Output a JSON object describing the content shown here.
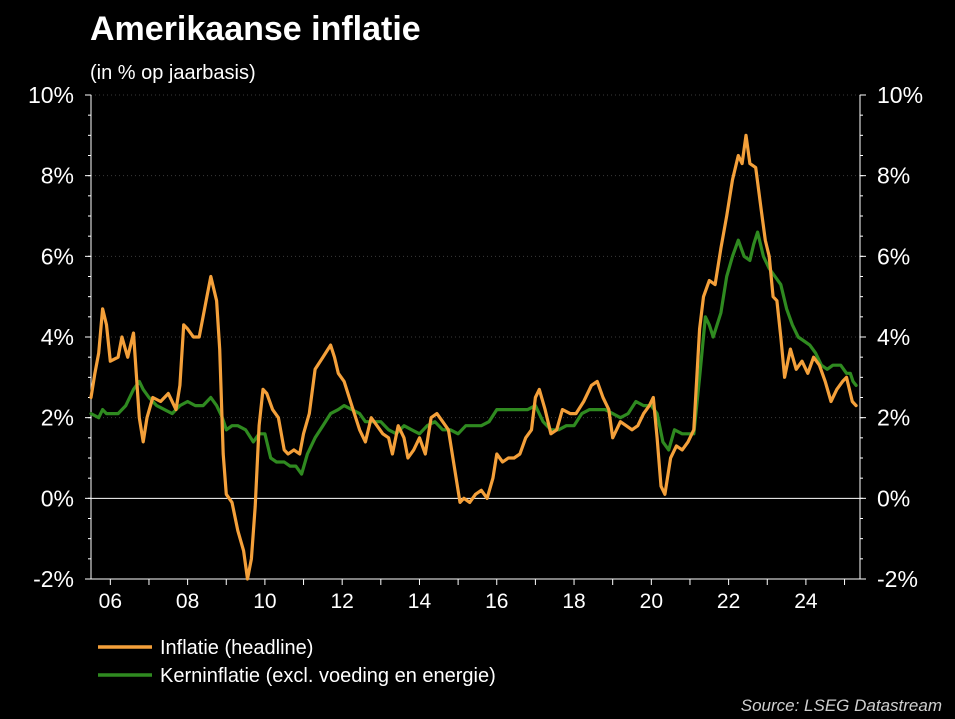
{
  "chart_data": {
    "type": "line",
    "title": "Amerikaanse inflatie",
    "subtitle": "(in % op jaarbasis)",
    "source": "Source: LSEG Datastream",
    "ylim": [
      -2,
      10
    ],
    "xlim": [
      2005.5,
      2025.4
    ],
    "grid": true,
    "legend_position": "bottom-left",
    "y_ticks": [
      -2,
      0,
      2,
      4,
      6,
      8,
      10
    ],
    "y_tick_labels": [
      "-2%",
      "0%",
      "2%",
      "4%",
      "6%",
      "8%",
      "10%"
    ],
    "x_ticks": [
      2006,
      2008,
      2010,
      2012,
      2014,
      2016,
      2018,
      2020,
      2022,
      2024
    ],
    "x_tick_labels": [
      "06",
      "08",
      "10",
      "12",
      "14",
      "16",
      "18",
      "20",
      "22",
      "24"
    ],
    "series": [
      {
        "name": "Inflatie (headline)",
        "color": "#f4a03a",
        "points": [
          [
            2005.5,
            2.5
          ],
          [
            2005.6,
            3.1
          ],
          [
            2005.7,
            3.6
          ],
          [
            2005.8,
            4.7
          ],
          [
            2005.9,
            4.3
          ],
          [
            2006.0,
            3.4
          ],
          [
            2006.2,
            3.5
          ],
          [
            2006.3,
            4.0
          ],
          [
            2006.45,
            3.5
          ],
          [
            2006.6,
            4.1
          ],
          [
            2006.75,
            2.0
          ],
          [
            2006.85,
            1.4
          ],
          [
            2006.95,
            2.0
          ],
          [
            2007.1,
            2.5
          ],
          [
            2007.3,
            2.4
          ],
          [
            2007.5,
            2.6
          ],
          [
            2007.7,
            2.2
          ],
          [
            2007.8,
            2.8
          ],
          [
            2007.9,
            4.3
          ],
          [
            2008.0,
            4.2
          ],
          [
            2008.15,
            4.0
          ],
          [
            2008.3,
            4.0
          ],
          [
            2008.5,
            5.0
          ],
          [
            2008.6,
            5.5
          ],
          [
            2008.75,
            4.9
          ],
          [
            2008.83,
            3.7
          ],
          [
            2008.92,
            1.1
          ],
          [
            2009.0,
            0.1
          ],
          [
            2009.15,
            -0.1
          ],
          [
            2009.3,
            -0.8
          ],
          [
            2009.45,
            -1.3
          ],
          [
            2009.55,
            -2.0
          ],
          [
            2009.65,
            -1.5
          ],
          [
            2009.75,
            -0.2
          ],
          [
            2009.85,
            1.8
          ],
          [
            2009.95,
            2.7
          ],
          [
            2010.05,
            2.6
          ],
          [
            2010.2,
            2.2
          ],
          [
            2010.35,
            2.0
          ],
          [
            2010.5,
            1.2
          ],
          [
            2010.6,
            1.1
          ],
          [
            2010.75,
            1.2
          ],
          [
            2010.9,
            1.1
          ],
          [
            2011.0,
            1.6
          ],
          [
            2011.15,
            2.1
          ],
          [
            2011.3,
            3.2
          ],
          [
            2011.5,
            3.5
          ],
          [
            2011.7,
            3.8
          ],
          [
            2011.8,
            3.5
          ],
          [
            2011.9,
            3.1
          ],
          [
            2012.05,
            2.9
          ],
          [
            2012.25,
            2.3
          ],
          [
            2012.45,
            1.7
          ],
          [
            2012.6,
            1.4
          ],
          [
            2012.75,
            2.0
          ],
          [
            2012.9,
            1.8
          ],
          [
            2013.05,
            1.6
          ],
          [
            2013.2,
            1.5
          ],
          [
            2013.3,
            1.1
          ],
          [
            2013.45,
            1.8
          ],
          [
            2013.6,
            1.5
          ],
          [
            2013.7,
            1.0
          ],
          [
            2013.85,
            1.2
          ],
          [
            2014.0,
            1.5
          ],
          [
            2014.15,
            1.1
          ],
          [
            2014.3,
            2.0
          ],
          [
            2014.45,
            2.1
          ],
          [
            2014.6,
            1.9
          ],
          [
            2014.75,
            1.7
          ],
          [
            2014.9,
            0.8
          ],
          [
            2015.05,
            -0.1
          ],
          [
            2015.15,
            0.0
          ],
          [
            2015.3,
            -0.1
          ],
          [
            2015.45,
            0.1
          ],
          [
            2015.6,
            0.2
          ],
          [
            2015.75,
            0.0
          ],
          [
            2015.9,
            0.5
          ],
          [
            2016.0,
            1.1
          ],
          [
            2016.15,
            0.9
          ],
          [
            2016.3,
            1.0
          ],
          [
            2016.45,
            1.0
          ],
          [
            2016.6,
            1.1
          ],
          [
            2016.75,
            1.5
          ],
          [
            2016.9,
            1.7
          ],
          [
            2017.0,
            2.5
          ],
          [
            2017.1,
            2.7
          ],
          [
            2017.25,
            2.2
          ],
          [
            2017.4,
            1.6
          ],
          [
            2017.55,
            1.7
          ],
          [
            2017.7,
            2.2
          ],
          [
            2017.9,
            2.1
          ],
          [
            2018.05,
            2.1
          ],
          [
            2018.25,
            2.4
          ],
          [
            2018.45,
            2.8
          ],
          [
            2018.6,
            2.9
          ],
          [
            2018.75,
            2.5
          ],
          [
            2018.9,
            2.2
          ],
          [
            2019.0,
            1.5
          ],
          [
            2019.2,
            1.9
          ],
          [
            2019.35,
            1.8
          ],
          [
            2019.5,
            1.7
          ],
          [
            2019.65,
            1.8
          ],
          [
            2019.8,
            2.1
          ],
          [
            2019.95,
            2.3
          ],
          [
            2020.05,
            2.5
          ],
          [
            2020.15,
            1.5
          ],
          [
            2020.25,
            0.3
          ],
          [
            2020.35,
            0.1
          ],
          [
            2020.5,
            1.0
          ],
          [
            2020.65,
            1.3
          ],
          [
            2020.8,
            1.2
          ],
          [
            2020.95,
            1.4
          ],
          [
            2021.1,
            1.7
          ],
          [
            2021.25,
            4.2
          ],
          [
            2021.35,
            5.0
          ],
          [
            2021.5,
            5.4
          ],
          [
            2021.65,
            5.3
          ],
          [
            2021.8,
            6.2
          ],
          [
            2021.95,
            7.0
          ],
          [
            2022.1,
            7.9
          ],
          [
            2022.25,
            8.5
          ],
          [
            2022.35,
            8.3
          ],
          [
            2022.45,
            9.0
          ],
          [
            2022.55,
            8.3
          ],
          [
            2022.7,
            8.2
          ],
          [
            2022.85,
            7.1
          ],
          [
            2022.95,
            6.4
          ],
          [
            2023.05,
            6.0
          ],
          [
            2023.15,
            5.0
          ],
          [
            2023.25,
            4.9
          ],
          [
            2023.35,
            4.0
          ],
          [
            2023.45,
            3.0
          ],
          [
            2023.6,
            3.7
          ],
          [
            2023.75,
            3.2
          ],
          [
            2023.9,
            3.4
          ],
          [
            2024.05,
            3.1
          ],
          [
            2024.2,
            3.5
          ],
          [
            2024.35,
            3.3
          ],
          [
            2024.5,
            2.9
          ],
          [
            2024.65,
            2.4
          ],
          [
            2024.8,
            2.7
          ],
          [
            2024.95,
            2.9
          ],
          [
            2025.05,
            3.0
          ],
          [
            2025.2,
            2.4
          ],
          [
            2025.3,
            2.3
          ]
        ]
      },
      {
        "name": "Kerninflatie (excl. voeding en energie)",
        "color": "#2f8a20",
        "points": [
          [
            2005.5,
            2.1
          ],
          [
            2005.7,
            2.0
          ],
          [
            2005.8,
            2.2
          ],
          [
            2005.9,
            2.1
          ],
          [
            2006.0,
            2.1
          ],
          [
            2006.2,
            2.1
          ],
          [
            2006.4,
            2.3
          ],
          [
            2006.6,
            2.7
          ],
          [
            2006.75,
            2.9
          ],
          [
            2006.85,
            2.7
          ],
          [
            2007.0,
            2.5
          ],
          [
            2007.2,
            2.3
          ],
          [
            2007.4,
            2.2
          ],
          [
            2007.6,
            2.1
          ],
          [
            2007.8,
            2.3
          ],
          [
            2008.0,
            2.4
          ],
          [
            2008.2,
            2.3
          ],
          [
            2008.4,
            2.3
          ],
          [
            2008.6,
            2.5
          ],
          [
            2008.75,
            2.3
          ],
          [
            2008.9,
            2.0
          ],
          [
            2009.0,
            1.7
          ],
          [
            2009.15,
            1.8
          ],
          [
            2009.3,
            1.8
          ],
          [
            2009.5,
            1.7
          ],
          [
            2009.7,
            1.4
          ],
          [
            2009.85,
            1.6
          ],
          [
            2010.0,
            1.6
          ],
          [
            2010.15,
            1.0
          ],
          [
            2010.3,
            0.9
          ],
          [
            2010.5,
            0.9
          ],
          [
            2010.65,
            0.8
          ],
          [
            2010.8,
            0.8
          ],
          [
            2010.95,
            0.6
          ],
          [
            2011.1,
            1.1
          ],
          [
            2011.3,
            1.5
          ],
          [
            2011.5,
            1.8
          ],
          [
            2011.7,
            2.1
          ],
          [
            2011.9,
            2.2
          ],
          [
            2012.05,
            2.3
          ],
          [
            2012.25,
            2.2
          ],
          [
            2012.45,
            2.1
          ],
          [
            2012.6,
            1.9
          ],
          [
            2012.8,
            1.9
          ],
          [
            2013.0,
            1.9
          ],
          [
            2013.2,
            1.7
          ],
          [
            2013.4,
            1.6
          ],
          [
            2013.6,
            1.8
          ],
          [
            2013.8,
            1.7
          ],
          [
            2014.0,
            1.6
          ],
          [
            2014.2,
            1.8
          ],
          [
            2014.4,
            1.9
          ],
          [
            2014.6,
            1.7
          ],
          [
            2014.8,
            1.7
          ],
          [
            2015.0,
            1.6
          ],
          [
            2015.2,
            1.8
          ],
          [
            2015.4,
            1.8
          ],
          [
            2015.6,
            1.8
          ],
          [
            2015.8,
            1.9
          ],
          [
            2016.0,
            2.2
          ],
          [
            2016.2,
            2.2
          ],
          [
            2016.4,
            2.2
          ],
          [
            2016.6,
            2.2
          ],
          [
            2016.8,
            2.2
          ],
          [
            2017.0,
            2.3
          ],
          [
            2017.2,
            1.9
          ],
          [
            2017.4,
            1.7
          ],
          [
            2017.6,
            1.7
          ],
          [
            2017.8,
            1.8
          ],
          [
            2018.0,
            1.8
          ],
          [
            2018.2,
            2.1
          ],
          [
            2018.4,
            2.2
          ],
          [
            2018.6,
            2.2
          ],
          [
            2018.8,
            2.2
          ],
          [
            2019.0,
            2.1
          ],
          [
            2019.2,
            2.0
          ],
          [
            2019.4,
            2.1
          ],
          [
            2019.6,
            2.4
          ],
          [
            2019.8,
            2.3
          ],
          [
            2020.0,
            2.3
          ],
          [
            2020.15,
            2.1
          ],
          [
            2020.3,
            1.4
          ],
          [
            2020.45,
            1.2
          ],
          [
            2020.6,
            1.7
          ],
          [
            2020.8,
            1.6
          ],
          [
            2020.95,
            1.6
          ],
          [
            2021.1,
            1.6
          ],
          [
            2021.25,
            3.0
          ],
          [
            2021.4,
            4.5
          ],
          [
            2021.5,
            4.3
          ],
          [
            2021.6,
            4.0
          ],
          [
            2021.8,
            4.6
          ],
          [
            2021.95,
            5.5
          ],
          [
            2022.1,
            6.0
          ],
          [
            2022.25,
            6.4
          ],
          [
            2022.4,
            6.0
          ],
          [
            2022.55,
            5.9
          ],
          [
            2022.65,
            6.3
          ],
          [
            2022.75,
            6.6
          ],
          [
            2022.9,
            6.0
          ],
          [
            2023.05,
            5.7
          ],
          [
            2023.2,
            5.5
          ],
          [
            2023.35,
            5.3
          ],
          [
            2023.5,
            4.7
          ],
          [
            2023.65,
            4.3
          ],
          [
            2023.8,
            4.0
          ],
          [
            2023.95,
            3.9
          ],
          [
            2024.1,
            3.8
          ],
          [
            2024.25,
            3.6
          ],
          [
            2024.4,
            3.3
          ],
          [
            2024.55,
            3.2
          ],
          [
            2024.7,
            3.3
          ],
          [
            2024.9,
            3.3
          ],
          [
            2025.05,
            3.1
          ],
          [
            2025.15,
            3.1
          ],
          [
            2025.22,
            2.9
          ],
          [
            2025.3,
            2.8
          ]
        ]
      }
    ]
  }
}
